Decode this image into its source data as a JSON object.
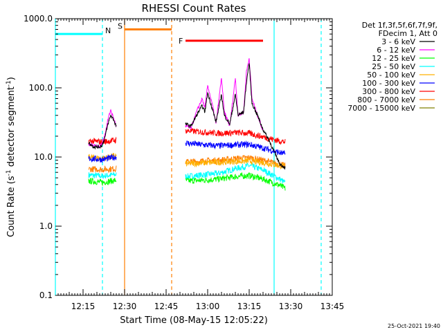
{
  "chart_data": {
    "type": "line",
    "title": "RHESSI Count Rates",
    "xlabel": "Start Time (08-May-15 12:05:22)",
    "ylabel_main": "Count Rate (s",
    "ylabel_sup1": "-1",
    "ylabel_mid": " detector segment",
    "ylabel_sup2": "-1",
    "ylabel_end": ")",
    "y_scale": "log",
    "ylim": [
      0.1,
      1000
    ],
    "xlim": [
      "12:05",
      "13:45"
    ],
    "x_ticks": [
      "12:15",
      "12:30",
      "12:45",
      "13:00",
      "13:15",
      "13:30",
      "13:45"
    ],
    "y_ticks": [
      "0.1",
      "1.0",
      "10.0",
      "100.0",
      "1000.0"
    ],
    "legend_header": [
      "Det 1f,3f,5f,6f,7f,9f,",
      "FDecim 1, Att 0"
    ],
    "legend_position": "right outside",
    "footer_date": "25-Oct-2021 19:40",
    "data_gaps": [
      [
        "12:05",
        "12:23"
      ],
      [
        "12:29",
        "12:48"
      ],
      [
        "13:25",
        "13:45"
      ]
    ],
    "annotations": [
      {
        "label": "N",
        "color": "#00ffff",
        "x_start": "12:05",
        "x_end": "12:22",
        "y": 600
      },
      {
        "label": "S",
        "color": "#ff7f00",
        "x_start": "12:30",
        "x_end": "12:47",
        "y": 700
      },
      {
        "label": "F",
        "color": "#ff0000",
        "x_start": "12:52",
        "x_end": "13:20",
        "y": 480
      }
    ],
    "vlines": [
      {
        "x": "12:05",
        "color": "#00ffff",
        "style": "solid"
      },
      {
        "x": "12:22",
        "color": "#00ffff",
        "style": "dashed"
      },
      {
        "x": "12:30",
        "color": "#ff7f00",
        "style": "solid"
      },
      {
        "x": "12:47",
        "color": "#ff7f00",
        "style": "dashed"
      },
      {
        "x": "13:24",
        "color": "#00ffff",
        "style": "solid"
      },
      {
        "x": "13:41",
        "color": "#00ffff",
        "style": "dashed"
      }
    ],
    "series": [
      {
        "name": "3 - 6 keV",
        "color": "#000000",
        "segment1": {
          "x": [
            "12:17",
            "12:19",
            "12:21",
            "12:22",
            "12:23",
            "12:24",
            "12:25",
            "12:26",
            "12:27"
          ],
          "y": [
            16,
            14,
            14,
            15,
            20,
            30,
            40,
            35,
            28
          ]
        },
        "segment2": {
          "x": [
            "12:52",
            "12:54",
            "12:56",
            "12:58",
            "12:59",
            "13:00",
            "13:02",
            "13:03",
            "13:05",
            "13:06",
            "13:08",
            "13:10",
            "13:11",
            "13:13",
            "13:14",
            "13:15",
            "13:16",
            "13:18",
            "13:20",
            "13:22",
            "13:24",
            "13:26",
            "13:28"
          ],
          "y": [
            30,
            28,
            40,
            55,
            45,
            85,
            45,
            32,
            80,
            40,
            30,
            80,
            40,
            45,
            120,
            230,
            60,
            40,
            25,
            18,
            12,
            8,
            7
          ]
        }
      },
      {
        "name": "6 - 12 keV",
        "color": "#ff00ff",
        "segment1": {
          "x": [
            "12:17",
            "12:19",
            "12:21",
            "12:22",
            "12:23",
            "12:24",
            "12:25",
            "12:26",
            "12:27"
          ],
          "y": [
            15,
            15,
            14,
            16,
            22,
            35,
            48,
            36,
            28
          ]
        },
        "segment2": {
          "x": [
            "12:52",
            "12:54",
            "12:56",
            "12:58",
            "12:59",
            "13:00",
            "13:02",
            "13:03",
            "13:05",
            "13:06",
            "13:08",
            "13:10",
            "13:11",
            "13:13",
            "13:14",
            "13:15",
            "13:16",
            "13:18",
            "13:20"
          ],
          "y": [
            28,
            26,
            45,
            70,
            50,
            110,
            50,
            30,
            140,
            45,
            28,
            140,
            40,
            45,
            170,
            270,
            70,
            40,
            24
          ]
        }
      },
      {
        "name": "12 - 25 keV",
        "color": "#00ff00",
        "segment1": {
          "x": [
            "12:17",
            "12:22",
            "12:27"
          ],
          "y": [
            4.5,
            4.3,
            4.6
          ]
        },
        "segment2": {
          "x": [
            "12:52",
            "12:58",
            "13:04",
            "13:10",
            "13:15",
            "13:20",
            "13:26",
            "13:28"
          ],
          "y": [
            4.5,
            4.6,
            4.8,
            5.2,
            5.4,
            4.8,
            3.9,
            3.5
          ]
        }
      },
      {
        "name": "25 - 50 keV",
        "color": "#00ffff",
        "segment1": {
          "x": [
            "12:17",
            "12:22",
            "12:27"
          ],
          "y": [
            5.5,
            5.3,
            5.6
          ]
        },
        "segment2": {
          "x": [
            "12:52",
            "12:58",
            "13:04",
            "13:10",
            "13:15",
            "13:20",
            "13:26",
            "13:28"
          ],
          "y": [
            5.2,
            5.5,
            5.8,
            6.8,
            7.5,
            6.5,
            4.8,
            4.2
          ]
        }
      },
      {
        "name": "50 - 100 keV",
        "color": "#ffb000",
        "segment1": {
          "x": [
            "12:17",
            "12:22",
            "12:27"
          ],
          "y": [
            10,
            9.5,
            10.5
          ]
        },
        "segment2": {
          "x": [
            "12:52",
            "12:58",
            "13:04",
            "13:10",
            "13:15",
            "13:20",
            "13:26",
            "13:28"
          ],
          "y": [
            8,
            8.2,
            8.4,
            8.6,
            8.8,
            8.3,
            7.5,
            7.3
          ]
        }
      },
      {
        "name": "100 - 300 keV",
        "color": "#0000ff",
        "segment1": {
          "x": [
            "12:17",
            "12:22",
            "12:27"
          ],
          "y": [
            9.5,
            9.2,
            10
          ]
        },
        "segment2": {
          "x": [
            "12:52",
            "12:58",
            "13:04",
            "13:10",
            "13:15",
            "13:20",
            "13:26",
            "13:28"
          ],
          "y": [
            16,
            15,
            14.5,
            15,
            15.2,
            13.5,
            11.5,
            11
          ]
        }
      },
      {
        "name": "300 - 800 keV",
        "color": "#ff0000",
        "segment1": {
          "x": [
            "12:17",
            "12:22",
            "12:27"
          ],
          "y": [
            17,
            16.5,
            17.5
          ]
        },
        "segment2": {
          "x": [
            "12:52",
            "12:58",
            "13:04",
            "13:10",
            "13:15",
            "13:20",
            "13:26",
            "13:28"
          ],
          "y": [
            24,
            23,
            22,
            22.5,
            22,
            19.5,
            17,
            16.5
          ]
        }
      },
      {
        "name": "800 - 7000 keV",
        "color": "#ff7f00",
        "segment1": {
          "x": [
            "12:17",
            "12:22",
            "12:27"
          ],
          "y": [
            6.7,
            6.6,
            6.8
          ]
        },
        "segment2": {
          "x": [
            "12:52",
            "12:58",
            "13:04",
            "13:10",
            "13:15",
            "13:20",
            "13:26",
            "13:28"
          ],
          "y": [
            8.5,
            8.7,
            9,
            9.5,
            9.8,
            9,
            7.8,
            7.5
          ]
        }
      },
      {
        "name": "7000 - 15000 keV",
        "color": "#808000",
        "segment1": {
          "x": [],
          "y": []
        },
        "segment2": {
          "x": [],
          "y": []
        }
      }
    ]
  }
}
